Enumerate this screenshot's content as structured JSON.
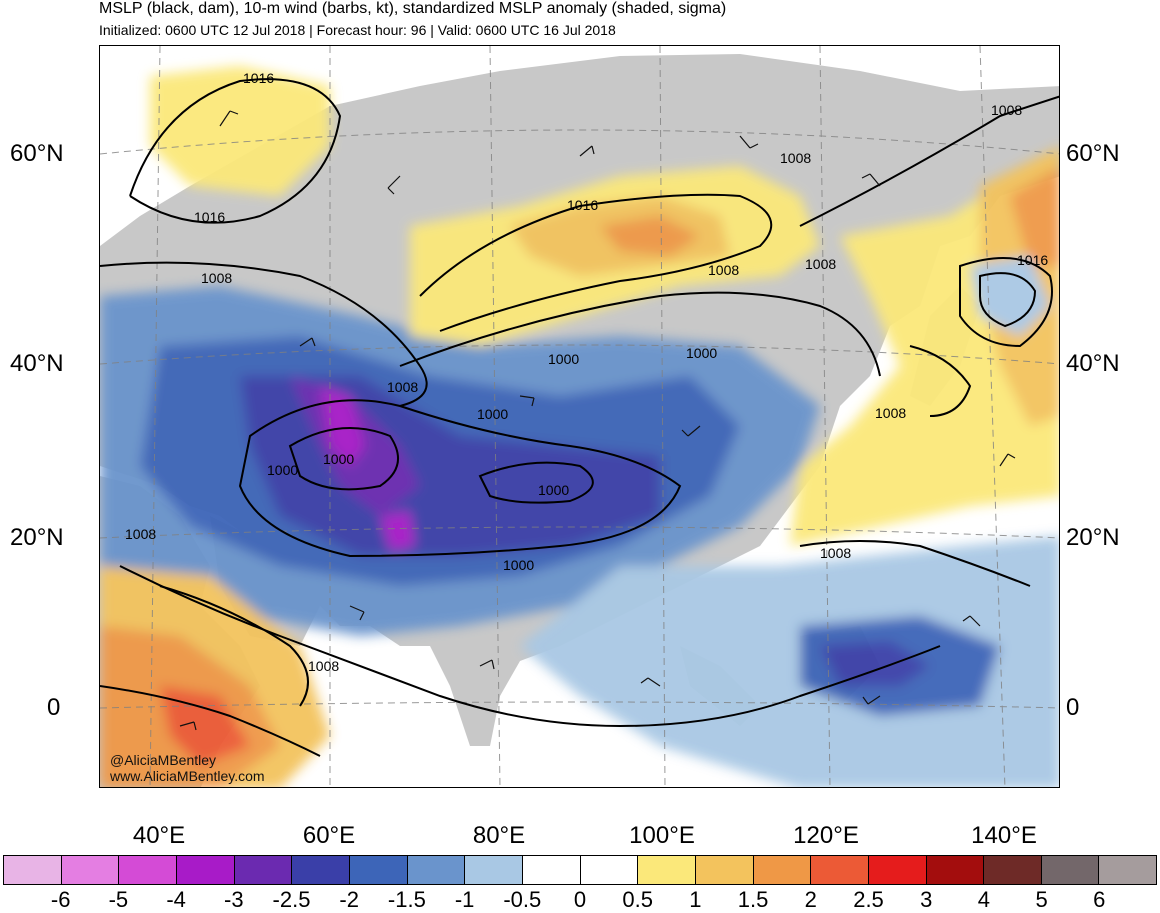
{
  "header": {
    "title": "MSLP (black, dam), 10-m wind (barbs, kt), standardized MSLP anomaly (shaded, sigma)",
    "subtitle": "Initialized: 0600 UTC 12 Jul 2018 | Forecast hour: 96 | Valid: 0600 UTC 16 Jul 2018"
  },
  "map": {
    "lat_labels": [
      "60°N",
      "40°N",
      "20°N",
      "0"
    ],
    "lon_labels": [
      "40°E",
      "60°E",
      "80°E",
      "100°E",
      "120°E",
      "140°E"
    ],
    "contour_labels": [
      "1016",
      "1016",
      "1016",
      "1016",
      "1008",
      "1008",
      "1008",
      "1008",
      "1008",
      "1008",
      "1008",
      "1008",
      "1008",
      "1008",
      "1000",
      "1000",
      "1000",
      "1000",
      "1000",
      "1000",
      "1000"
    ],
    "colors": {
      "land": "#c8c8c8",
      "ocean": "#ffffff"
    }
  },
  "credits": {
    "handle": "@AliciaMBentley",
    "website": "www.AliciaMBentley.com"
  },
  "colorbar": {
    "labels": [
      "-6",
      "-5",
      "-4",
      "-3",
      "-2.5",
      "-2",
      "-1.5",
      "-1",
      "-0.5",
      "0",
      "0.5",
      "1",
      "1.5",
      "2",
      "2.5",
      "3",
      "4",
      "5",
      "6"
    ],
    "colors": [
      "#e8b4e6",
      "#e47ee2",
      "#d44bd6",
      "#a81bc8",
      "#6b2ab0",
      "#3a3fa8",
      "#3d65b8",
      "#6a94cc",
      "#a9c8e4",
      "#ffffff",
      "#ffffff",
      "#fbe87a",
      "#f3c35d",
      "#ef9846",
      "#ec5a36",
      "#e51c1c",
      "#a30d0d",
      "#6e2a27",
      "#73676a",
      "#a59c9d"
    ]
  }
}
